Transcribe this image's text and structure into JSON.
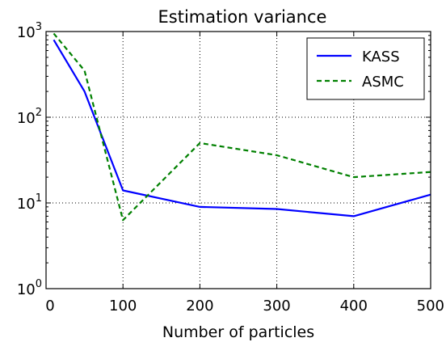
{
  "chart_data": {
    "type": "line",
    "title": "Estimation variance",
    "xlabel": "Number of particles",
    "ylabel": "",
    "xlim": [
      0,
      500
    ],
    "ylim": [
      1,
      1000
    ],
    "yscale": "log",
    "grid": true,
    "legend_position": "top-right",
    "x_ticks": [
      "0",
      "100",
      "200",
      "300",
      "400",
      "500"
    ],
    "y_ticks": [
      {
        "base": "10",
        "exp": "0"
      },
      {
        "base": "10",
        "exp": "1"
      },
      {
        "base": "10",
        "exp": "2"
      },
      {
        "base": "10",
        "exp": "3"
      }
    ],
    "x": [
      10,
      50,
      100,
      200,
      300,
      400,
      500
    ],
    "series": [
      {
        "name": "KASS",
        "color": "#0000ff",
        "linestyle": "solid",
        "values": [
          800,
          200,
          14,
          9,
          8.5,
          7,
          12.5
        ]
      },
      {
        "name": "ASMC",
        "color": "#008000",
        "linestyle": "dashed",
        "values": [
          950,
          350,
          6.3,
          50,
          36,
          20,
          23
        ]
      }
    ]
  }
}
